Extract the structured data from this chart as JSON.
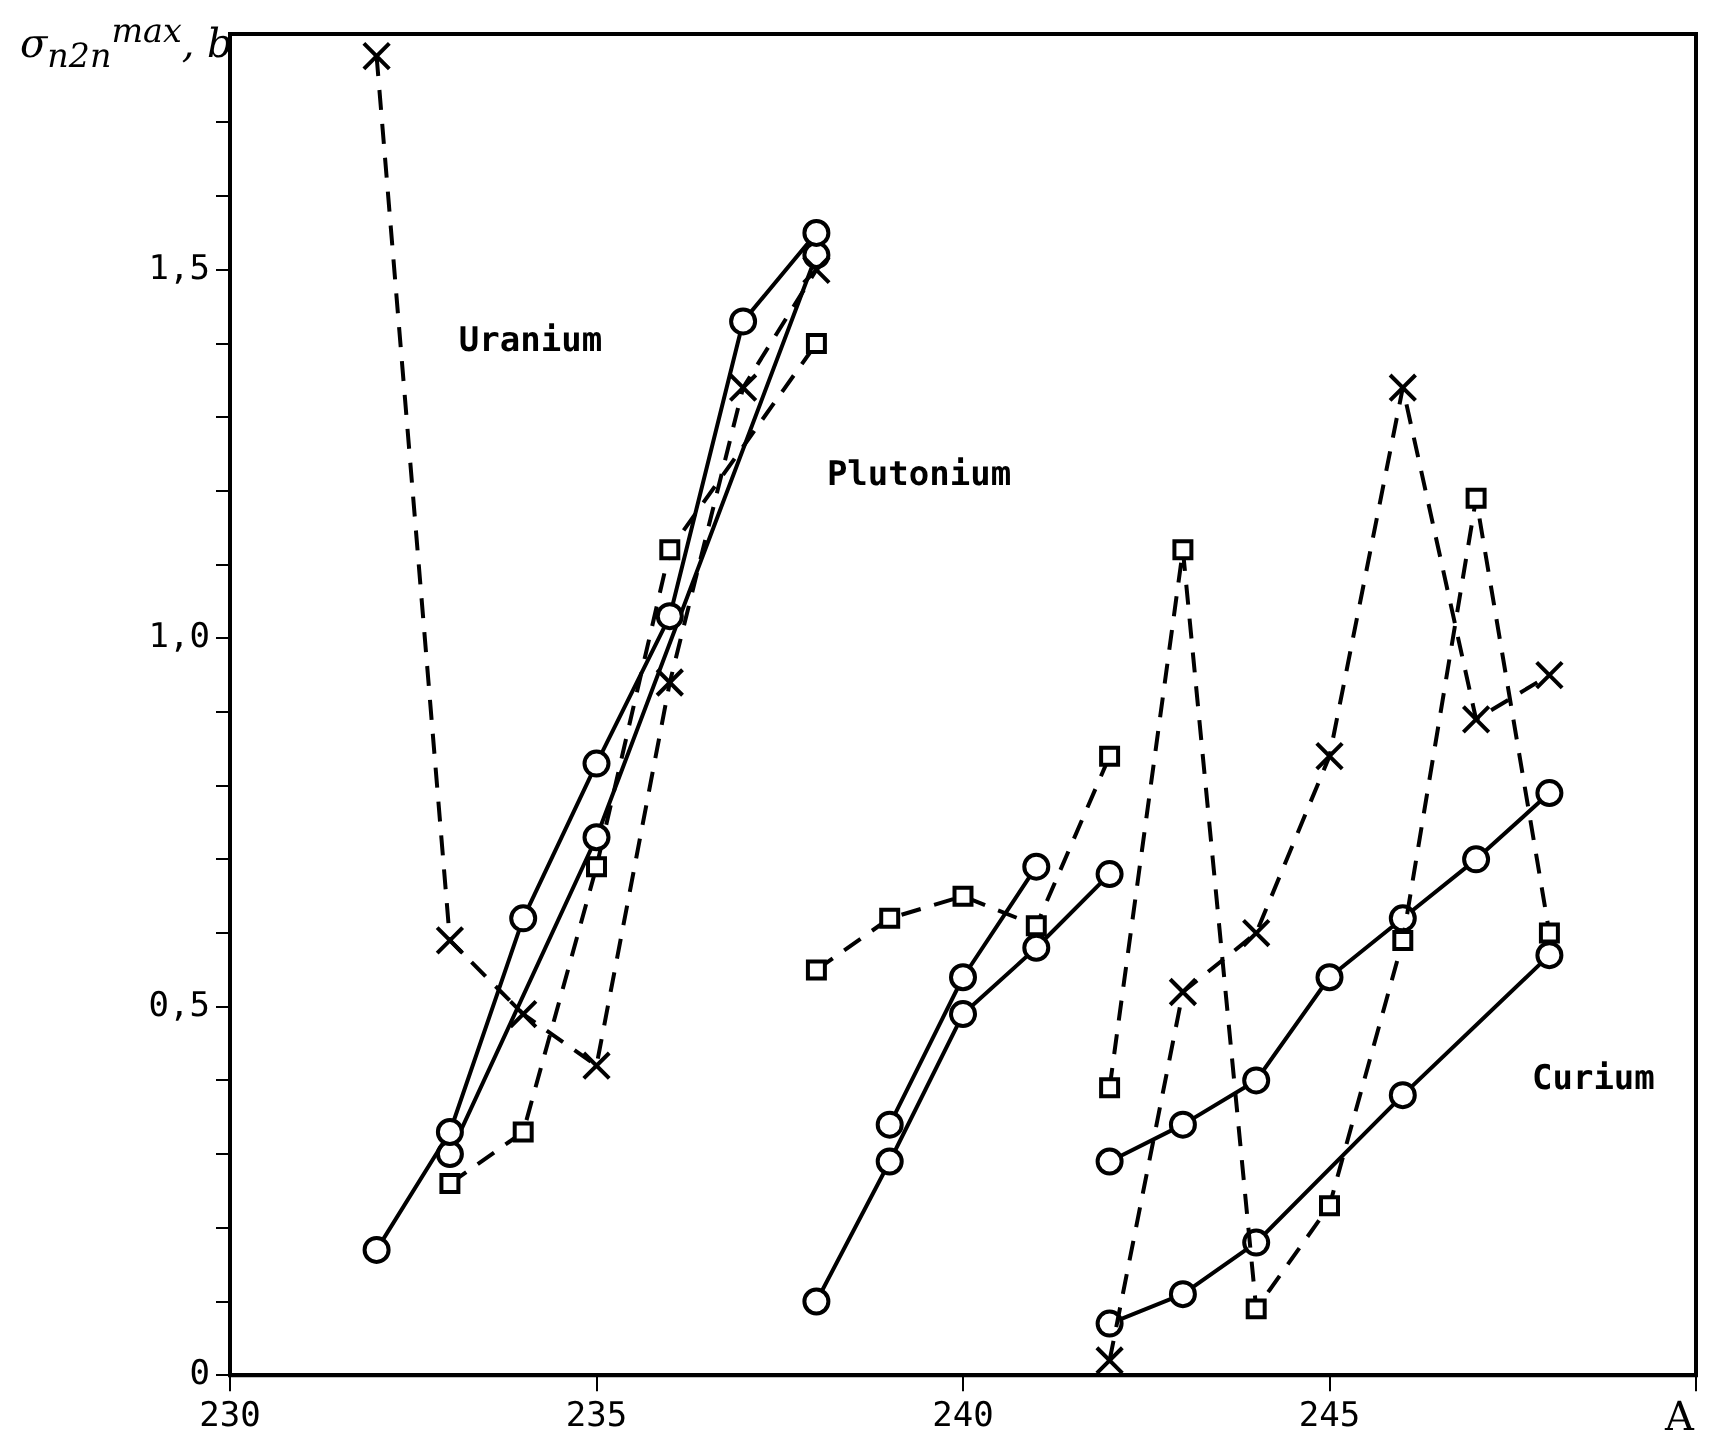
{
  "chart_data": {
    "type": "line",
    "ylabel": "σ$_{n2n}$$^{max}$, b",
    "xlabel": "A",
    "xlim": [
      230,
      250
    ],
    "xticks": [
      230,
      235,
      240,
      245,
      {
        "value": 250,
        "label": null
      }
    ],
    "ylim": [
      0,
      1.82
    ],
    "yticks": [
      {
        "value": 0,
        "label": "0"
      },
      {
        "value": 0.1,
        "label": null
      },
      {
        "value": 0.2,
        "label": null
      },
      {
        "value": 0.3,
        "label": null
      },
      {
        "value": 0.4,
        "label": null
      },
      {
        "value": 0.5,
        "label": "0,5"
      },
      {
        "value": 0.6,
        "label": null
      },
      {
        "value": 0.7,
        "label": null
      },
      {
        "value": 0.8,
        "label": null
      },
      {
        "value": 0.9,
        "label": null
      },
      {
        "value": 1.0,
        "label": "1,0"
      },
      {
        "value": 1.1,
        "label": null
      },
      {
        "value": 1.2,
        "label": null
      },
      {
        "value": 1.3,
        "label": null
      },
      {
        "value": 1.4,
        "label": null
      },
      {
        "value": 1.5,
        "label": "1,5"
      },
      {
        "value": 1.6,
        "label": null
      },
      {
        "value": 1.7,
        "label": null
      }
    ],
    "grid": false,
    "legend": false,
    "series": [
      {
        "color": "#000000",
        "marker": "circle",
        "line_style": "solid",
        "x": [
          232,
          233,
          234,
          235,
          236,
          237,
          238
        ],
        "values": [
          0.17,
          0.33,
          0.62,
          0.83,
          1.03,
          1.43,
          1.55
        ]
      },
      {
        "color": "#000000",
        "marker": "circle",
        "line_style": "solid",
        "x": [
          233,
          235,
          238
        ],
        "values": [
          0.3,
          0.73,
          1.52
        ]
      },
      {
        "color": "#000000",
        "marker": "cross",
        "line_style": "dashed",
        "x": [
          232,
          233,
          234,
          235,
          236,
          237,
          238
        ],
        "values": [
          1.79,
          0.59,
          0.49,
          0.42,
          0.94,
          1.34,
          1.5
        ]
      },
      {
        "color": "#000000",
        "marker": "square",
        "line_style": "dashed",
        "x": [
          233,
          234,
          235,
          236,
          238
        ],
        "values": [
          0.26,
          0.33,
          0.69,
          1.12,
          1.4
        ]
      },
      {
        "color": "#000000",
        "marker": "square",
        "line_style": "dashed",
        "x": [
          238,
          239,
          240,
          241,
          242
        ],
        "values": [
          0.55,
          0.62,
          0.65,
          0.61,
          0.84
        ]
      },
      {
        "color": "#000000",
        "marker": "circle",
        "line_style": "solid",
        "x": [
          239,
          240,
          241
        ],
        "values": [
          0.34,
          0.54,
          0.69
        ]
      },
      {
        "color": "#000000",
        "marker": "circle",
        "line_style": "solid",
        "x": [
          238,
          239,
          240,
          241,
          242
        ],
        "values": [
          0.1,
          0.29,
          0.49,
          0.58,
          0.68
        ]
      },
      {
        "color": "#000000",
        "marker": "square",
        "line_style": "dashed",
        "x": [
          242,
          243,
          244,
          245,
          246,
          247,
          248
        ],
        "values": [
          0.39,
          1.12,
          0.09,
          0.23,
          0.59,
          1.19,
          0.6
        ]
      },
      {
        "color": "#000000",
        "marker": "cross",
        "line_style": "dashed",
        "x": [
          242,
          243,
          244,
          245,
          246,
          247,
          248
        ],
        "values": [
          0.02,
          0.52,
          0.6,
          0.84,
          1.34,
          0.89,
          0.95
        ]
      },
      {
        "color": "#000000",
        "marker": "circle",
        "line_style": "solid",
        "x": [
          242,
          243,
          244,
          245,
          246,
          247,
          248
        ],
        "values": [
          0.29,
          0.34,
          0.4,
          0.54,
          0.62,
          0.7,
          0.79
        ]
      },
      {
        "color": "#000000",
        "marker": "circle",
        "line_style": "solid",
        "x": [
          242,
          243,
          244,
          246,
          248
        ],
        "values": [
          0.07,
          0.11,
          0.18,
          0.38,
          0.57
        ]
      }
    ],
    "annotations": [
      "Uranium",
      "Plutonium",
      "Curium"
    ]
  }
}
